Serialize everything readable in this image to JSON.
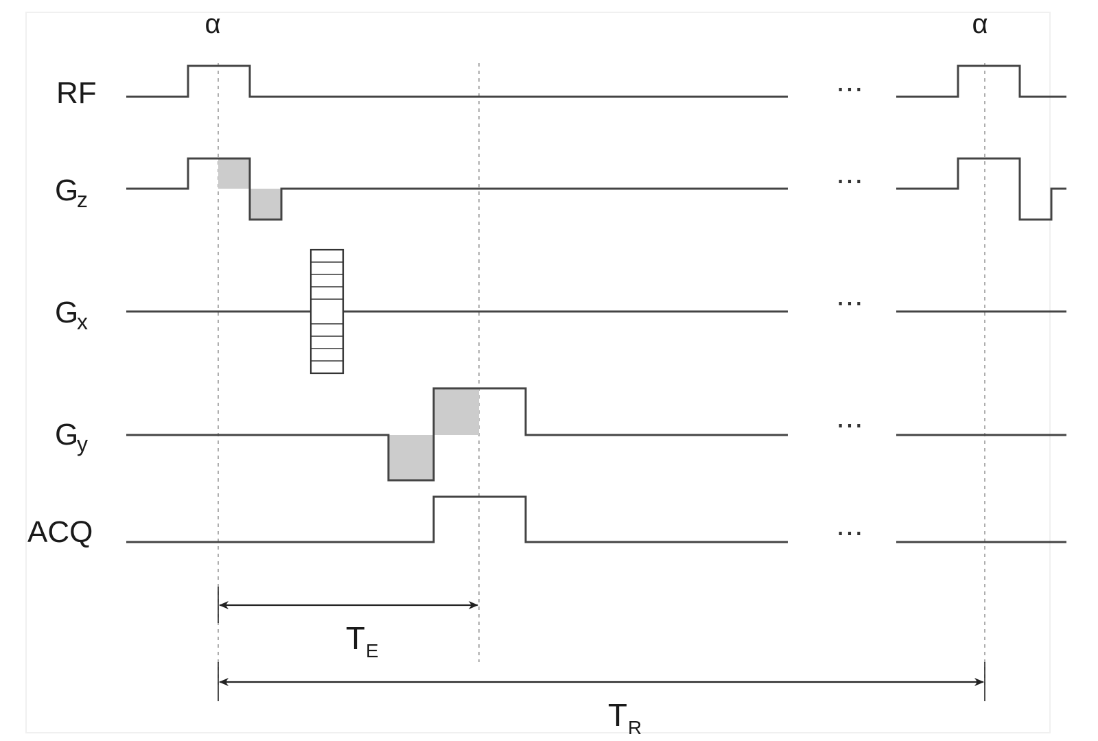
{
  "pulse_labels": {
    "left": "α",
    "right": "α"
  },
  "channels": {
    "rf": "RF",
    "gz_main": "G",
    "gz_sub": "z",
    "gx_main": "G",
    "gx_sub": "x",
    "gy_main": "G",
    "gy_sub": "y",
    "acq": "ACQ"
  },
  "continuation": "⋯",
  "intervals": {
    "te_main": "T",
    "te_sub": "E",
    "tr_main": "T",
    "tr_sub": "R"
  },
  "colors": {
    "line": "#444444",
    "shade": "#cccccc",
    "guide": "#9a9a9a"
  }
}
